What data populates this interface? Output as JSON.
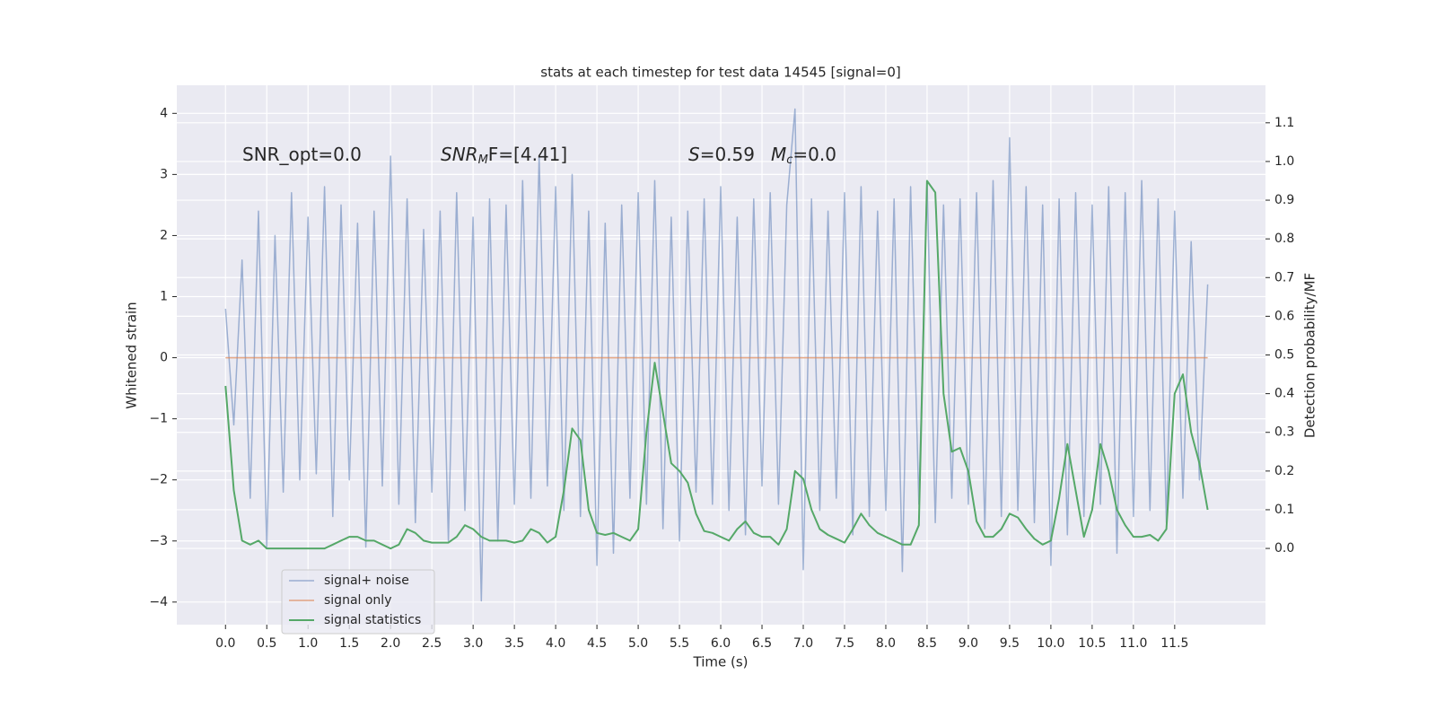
{
  "chart_data": {
    "type": "line",
    "title": "stats at each timestep for test data 14545 [signal=0]",
    "xlabel": "Time (s)",
    "ylabel": "Whitened strain",
    "y2label": "Detection probability/MF",
    "annotations": [
      [
        "SNR_opt=0.0"
      ],
      [
        "SNR",
        "M",
        "F=[4.41]"
      ],
      [
        "S",
        "=0.59"
      ],
      [
        "M",
        "c",
        "=0.0"
      ]
    ],
    "x": [
      0,
      0.1,
      0.2,
      0.3,
      0.4,
      0.5,
      0.6,
      0.7,
      0.8,
      0.9,
      1,
      1.1,
      1.2,
      1.3,
      1.4,
      1.5,
      1.6,
      1.7,
      1.8,
      1.9,
      2,
      2.1,
      2.2,
      2.3,
      2.4,
      2.5,
      2.6,
      2.7,
      2.8,
      2.9,
      3,
      3.1,
      3.2,
      3.3,
      3.4,
      3.5,
      3.6,
      3.7,
      3.8,
      3.9,
      4,
      4.1,
      4.2,
      4.3,
      4.4,
      4.5,
      4.6,
      4.7,
      4.8,
      4.9,
      5,
      5.1,
      5.2,
      5.3,
      5.4,
      5.5,
      5.6,
      5.7,
      5.8,
      5.9,
      6,
      6.1,
      6.2,
      6.3,
      6.4,
      6.5,
      6.6,
      6.7,
      6.8,
      6.9,
      7,
      7.1,
      7.2,
      7.3,
      7.4,
      7.5,
      7.6,
      7.7,
      7.8,
      7.9,
      8,
      8.1,
      8.2,
      8.3,
      8.4,
      8.5,
      8.6,
      8.7,
      8.8,
      8.9,
      9,
      9.1,
      9.2,
      9.3,
      9.4,
      9.5,
      9.6,
      9.7,
      9.8,
      9.9,
      10,
      10.1,
      10.2,
      10.3,
      10.4,
      10.5,
      10.6,
      10.7,
      10.8,
      10.9,
      11,
      11.1,
      11.2,
      11.3,
      11.4,
      11.5,
      11.6,
      11.7,
      11.8,
      11.9
    ],
    "series": [
      {
        "name": "signal+ noise",
        "color": "#4c72b0",
        "values": [
          0.8,
          -1.1,
          1.6,
          -2.3,
          2.4,
          -3.1,
          2.0,
          -2.2,
          2.7,
          -2.0,
          2.3,
          -1.9,
          2.8,
          -2.6,
          2.5,
          -2.0,
          2.2,
          -3.1,
          2.4,
          -2.1,
          3.3,
          -2.4,
          2.6,
          -2.7,
          2.1,
          -2.2,
          2.4,
          -3.0,
          2.7,
          -2.5,
          2.3,
          -3.98,
          2.6,
          -3.0,
          2.5,
          -2.4,
          2.9,
          -2.3,
          3.3,
          -2.1,
          2.8,
          -2.5,
          3.0,
          -2.6,
          2.4,
          -3.4,
          2.2,
          -3.2,
          2.5,
          -2.3,
          2.7,
          -2.4,
          2.9,
          -2.8,
          2.3,
          -3.0,
          2.4,
          -2.2,
          2.6,
          -2.4,
          2.8,
          -2.5,
          2.3,
          -2.9,
          2.6,
          -2.1,
          2.7,
          -2.4,
          2.5,
          4.07,
          -3.47,
          2.6,
          -2.5,
          2.4,
          -2.3,
          2.7,
          -2.9,
          2.8,
          -2.6,
          2.4,
          -2.5,
          2.6,
          -3.5,
          2.8,
          -2.4,
          2.9,
          -2.7,
          2.5,
          -2.3,
          2.6,
          -2.4,
          2.7,
          -2.8,
          2.9,
          -2.6,
          3.6,
          -2.5,
          2.8,
          -2.7,
          2.5,
          -3.4,
          2.6,
          -2.9,
          2.7,
          -2.6,
          2.5,
          -2.4,
          2.8,
          -3.2,
          2.7,
          -2.6,
          2.9,
          -2.5,
          2.6,
          -2.7,
          2.4,
          -2.3,
          1.9,
          -2.0,
          1.2
        ]
      },
      {
        "name": "signal only",
        "color": "#dd8452",
        "values": [
          0,
          0,
          0,
          0,
          0,
          0,
          0,
          0,
          0,
          0,
          0,
          0,
          0,
          0,
          0,
          0,
          0,
          0,
          0,
          0,
          0,
          0,
          0,
          0,
          0,
          0,
          0,
          0,
          0,
          0,
          0,
          0,
          0,
          0,
          0,
          0,
          0,
          0,
          0,
          0,
          0,
          0,
          0,
          0,
          0,
          0,
          0,
          0,
          0,
          0,
          0,
          0,
          0,
          0,
          0,
          0,
          0,
          0,
          0,
          0,
          0,
          0,
          0,
          0,
          0,
          0,
          0,
          0,
          0,
          0,
          0,
          0,
          0,
          0,
          0,
          0,
          0,
          0,
          0,
          0,
          0,
          0,
          0,
          0,
          0,
          0,
          0,
          0,
          0,
          0,
          0,
          0,
          0,
          0,
          0,
          0,
          0,
          0,
          0,
          0,
          0,
          0,
          0,
          0,
          0,
          0,
          0,
          0,
          0,
          0,
          0,
          0,
          0,
          0,
          0,
          0,
          0,
          0,
          0,
          0
        ]
      },
      {
        "name": "signal statistics",
        "color": "#55a868",
        "axis": "y2",
        "values": [
          0.42,
          0.15,
          0.02,
          0.01,
          0.02,
          0,
          0,
          0,
          0,
          0,
          0,
          0,
          0,
          0.01,
          0.02,
          0.03,
          0.03,
          0.02,
          0.02,
          0.01,
          0,
          0.01,
          0.05,
          0.04,
          0.02,
          0.015,
          0.015,
          0.015,
          0.03,
          0.06,
          0.05,
          0.03,
          0.02,
          0.02,
          0.02,
          0.015,
          0.02,
          0.05,
          0.04,
          0.015,
          0.03,
          0.15,
          0.31,
          0.28,
          0.1,
          0.04,
          0.035,
          0.04,
          0.03,
          0.02,
          0.05,
          0.3,
          0.48,
          0.35,
          0.22,
          0.2,
          0.17,
          0.09,
          0.045,
          0.04,
          0.03,
          0.02,
          0.05,
          0.07,
          0.04,
          0.03,
          0.03,
          0.01,
          0.05,
          0.2,
          0.18,
          0.1,
          0.05,
          0.035,
          0.025,
          0.015,
          0.05,
          0.09,
          0.06,
          0.04,
          0.03,
          0.02,
          0.01,
          0.01,
          0.06,
          0.95,
          0.92,
          0.4,
          0.25,
          0.26,
          0.2,
          0.07,
          0.03,
          0.03,
          0.05,
          0.09,
          0.08,
          0.05,
          0.025,
          0.01,
          0.02,
          0.13,
          0.27,
          0.15,
          0.03,
          0.1,
          0.27,
          0.2,
          0.1,
          0.06,
          0.03,
          0.03,
          0.035,
          0.02,
          0.05,
          0.4,
          0.45,
          0.3,
          0.22,
          0.1
        ]
      }
    ],
    "xlim": [
      -0.59,
      12.6
    ],
    "xticks": [
      {
        "value": 0,
        "label": "0.0"
      },
      0.5,
      {
        "value": 1,
        "label": "1.0"
      },
      1.5,
      {
        "value": 2,
        "label": "2.0"
      },
      2.5,
      {
        "value": 3,
        "label": "3.0"
      },
      3.5,
      {
        "value": 4,
        "label": "4.0"
      },
      4.5,
      {
        "value": 5,
        "label": "5.0"
      },
      5.5,
      {
        "value": 6,
        "label": "6.0"
      },
      6.5,
      {
        "value": 7,
        "label": "7.0"
      },
      7.5,
      {
        "value": 8,
        "label": "8.0"
      },
      8.5,
      {
        "value": 9,
        "label": "9.0"
      },
      9.5,
      {
        "value": 10,
        "label": "10.0"
      },
      10.5,
      {
        "value": 11,
        "label": "11.0"
      },
      11.5
    ],
    "ylim": [
      -4.37,
      4.46
    ],
    "yticks": [
      {
        "value": -4,
        "label": "−4"
      },
      {
        "value": -3,
        "label": "−3"
      },
      {
        "value": -2,
        "label": "−2"
      },
      {
        "value": -1,
        "label": "−1"
      },
      0,
      1,
      2,
      3,
      4
    ],
    "y2lim": [
      -0.197,
      1.197
    ],
    "y2ticks": [
      {
        "value": 0,
        "label": "0.0"
      },
      0.1,
      0.2,
      0.3,
      0.4,
      0.5,
      0.6,
      0.7,
      0.8,
      0.9,
      {
        "value": 1,
        "label": "1.0"
      },
      1.1
    ],
    "grid": true,
    "legend": "lower left"
  }
}
